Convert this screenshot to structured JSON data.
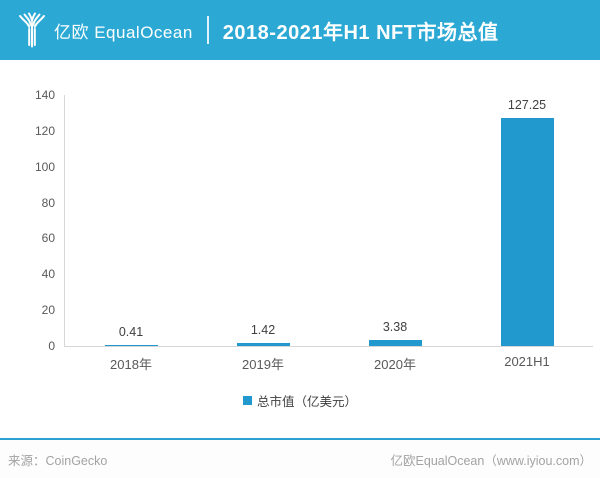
{
  "header": {
    "logo_text": "亿欧 EqualOcean",
    "title": "2018-2021年H1 NFT市场总值"
  },
  "colors": {
    "header_bg": "#2BA9D4",
    "bar": "#2299CE",
    "axis_line": "#D6D6D6",
    "tick_label": "#595959",
    "value_label": "#404040",
    "footer_line": "#2BA0D2",
    "footer_text": "#A3A3A3"
  },
  "chart_data": {
    "type": "bar",
    "title": "2018-2021年H1 NFT市场总值",
    "categories": [
      "2018年",
      "2019年",
      "2020年",
      "2021H1"
    ],
    "values": [
      0.41,
      1.42,
      3.38,
      127.25
    ],
    "value_labels": [
      "0.41",
      "1.42",
      "3.38",
      "127.25"
    ],
    "xlabel": "",
    "ylabel": "",
    "ylim": [
      0,
      140
    ],
    "ytick_step": 20,
    "yticks": [
      "0",
      "20",
      "40",
      "60",
      "80",
      "100",
      "120",
      "140"
    ],
    "grid": false,
    "legend_position": "bottom-center",
    "legend": [
      {
        "label": "总市值（亿美元）",
        "color": "#2299CE"
      }
    ],
    "unit": "亿美元"
  },
  "footer": {
    "source": "来源：CoinGecko",
    "brand": "亿欧EqualOcean（www.iyiou.com）"
  }
}
